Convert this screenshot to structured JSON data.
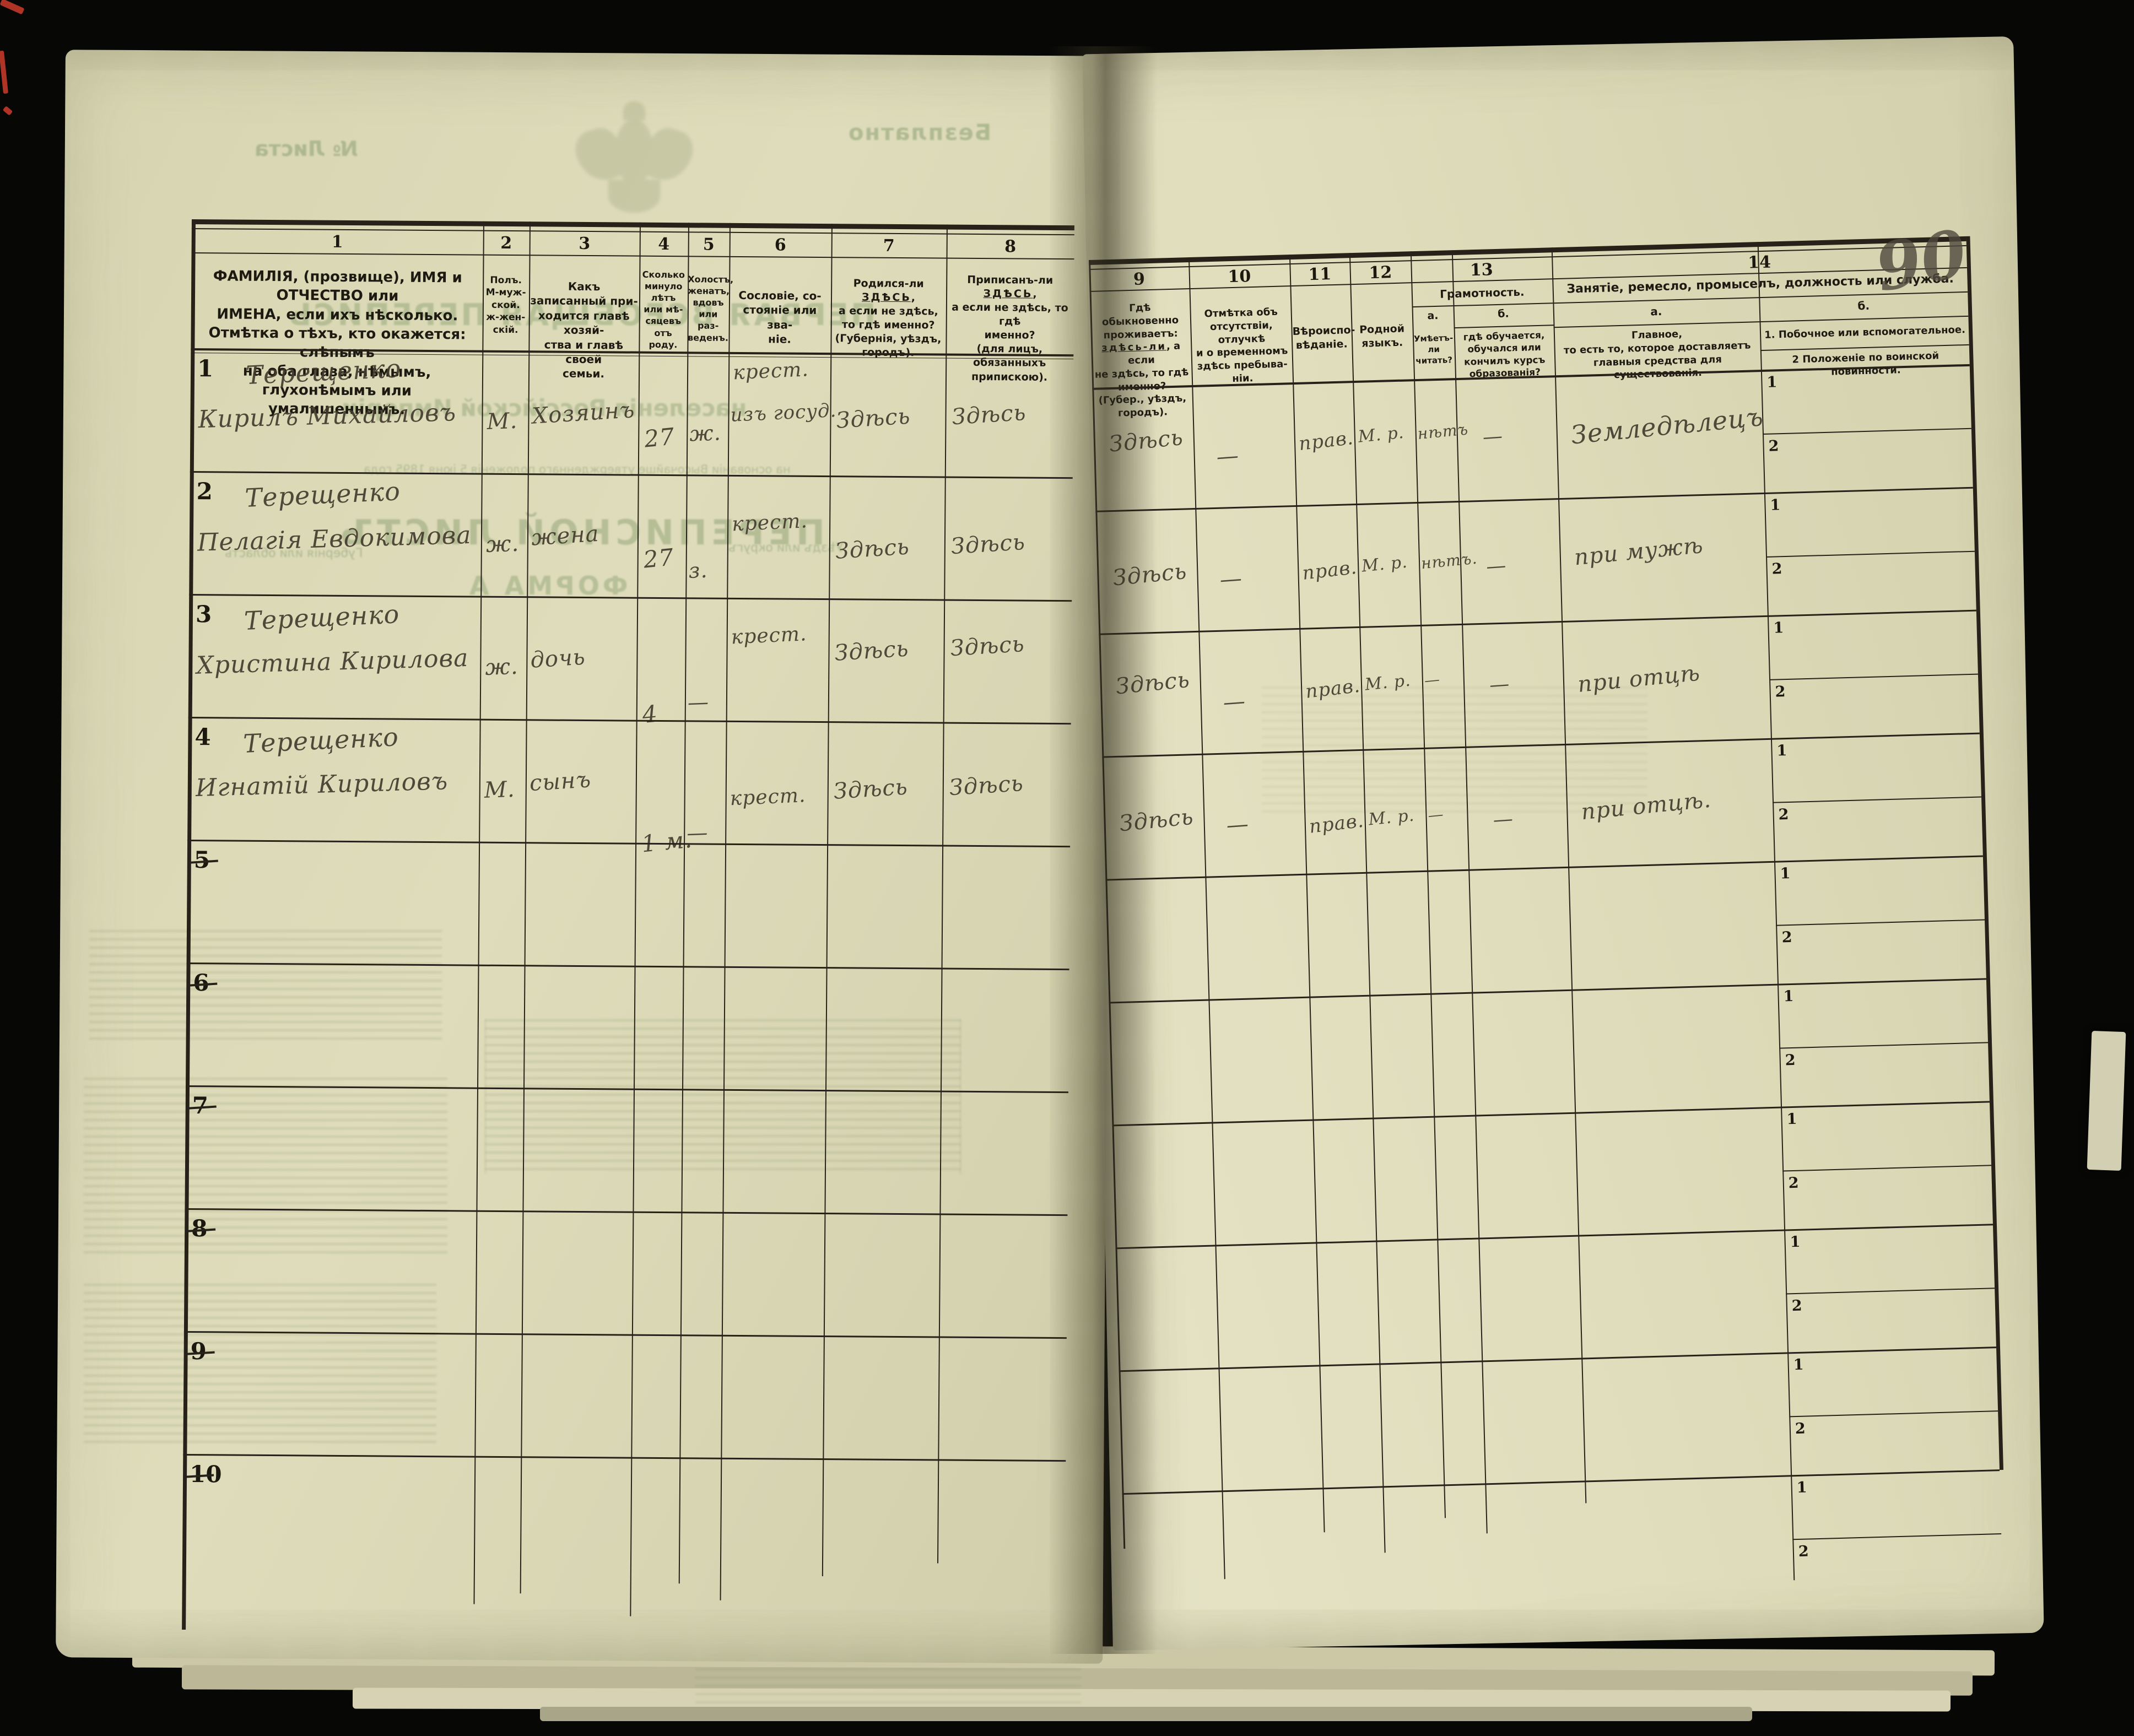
{
  "annotations": {
    "sheet_number": "90"
  },
  "bleedthrough": {
    "free": "Безплатно",
    "sheet_no": "№ Листа",
    "title1": "ПЕРВАЯ ВСЕОБЩАЯ ПЕРЕПИСЬ",
    "title2": "населенія Россійской Имперіи",
    "title3": "на основаніи Высочайше утвержденнаго положенія 5 іюня 1895 года",
    "list": "ПЕРЕПИСНОЙ ЛИСТЪ",
    "form": "ФОРМА А",
    "gub": "Губернія или область",
    "uezd": "Уѣздъ или округъ"
  },
  "table": {
    "column_numbers": [
      "1",
      "2",
      "3",
      "4",
      "5",
      "6",
      "7",
      "8",
      "9",
      "10",
      "11",
      "12",
      "13",
      "14"
    ],
    "columns": {
      "c1": "ФАМИЛІЯ, (прозвище), ИМЯ и ОТЧЕСТВО или\nИМЕНА, если ихъ нѣсколько.\nОтмѣтка о тѣхъ, кто окажется: слѣпымъ\nна оба глаза, нѣмымъ, глухонѣмымъ или\nумалишеннымъ.",
      "c2": "Полъ.\nМ-муж-\nской.\nж-жен-\nскій.",
      "c3": "Какъ записанный при-\nходится главѣ хозяй-\nства и главѣ своей\nсемьи.",
      "c4": "Сколько\nминуло\nлѣтъ\nили мѣ-\nсяцевъ\nотъ роду.",
      "c5": "Холостъ,\nженатъ,\nвдовъ\nили раз-\nведенъ.",
      "c6": "Сословіе, со-\nстояніе или зва-\nніе.",
      "c7": {
        "pre": "Родился-ли ",
        "u": "ЗДѢСЬ",
        "post": ",\nа если не здѣсь,\nто гдѣ именно?\n(Губернія, уѣздъ, городъ)."
      },
      "c8": {
        "pre": "Приписанъ-ли ",
        "u": "ЗДѢСЬ",
        "post": ",\nа если не здѣсь, то гдѣ\nименно?\n(для лицъ, обязанныхъ\nприпискою)."
      },
      "c9": {
        "pre": "Гдѣ обыкновенно\nпроживаетъ:\n",
        "u": "здѣсь-ли",
        "post": ", а если\nне здѣсь, то гдѣ\nименно?\n(Губер., уѣздъ, городъ)."
      },
      "c10": "Отмѣтка объ\nотсутствіи, отлучкѣ\nи о временномъ\nздѣсь пребыва-\nніи.",
      "c11": "Вѣроиспо-\nвѣданіе.",
      "c12": "Родной\nязыкъ.",
      "c13": {
        "title": "Грамотность.",
        "a_label": "а.",
        "b_label": "б.",
        "a": "Умѣетъ-\nли\nчитать?",
        "b": "гдѣ обучается,\nобучался или\nкончилъ курсъ\nобразованія?"
      },
      "c14": {
        "title": "Занятіе, ремесло, промыселъ, должность или служба.",
        "a_label": "а.",
        "b_label": "б.",
        "a": "Главное,\nто есть то, которое доставляетъ\nглавныя средства для существованія.",
        "b1": "1.  Побочное или вспомогательное.",
        "b2": "2  Положеніе по воинской повинности.",
        "row_sub_labels": [
          "1",
          "2"
        ]
      }
    },
    "rows": [
      {
        "num": "1",
        "surname": "Терещенко",
        "name": "Кирилъ Михайловъ",
        "sex": "М.",
        "relation": "Хозяинъ",
        "age": "27",
        "marital": "ж.",
        "estate": "крест.",
        "estate2": "изъ госуд.",
        "born": "Здѣсь",
        "ascribed": "Здѣсь",
        "resides": "Здѣсь",
        "absence": "—",
        "religion": "прав.",
        "language": "М. р.",
        "reads": "нѣтъ",
        "school": "—",
        "occupation": "Земледѣлецъ"
      },
      {
        "num": "2",
        "surname": "Терещенко",
        "name": "Пелагія Евдокимова",
        "sex": "ж.",
        "relation": "жена",
        "age": "27",
        "marital": "з.",
        "estate": "крест.",
        "estate2": "",
        "born": "Здѣсь",
        "ascribed": "Здѣсь",
        "resides": "Здѣсь",
        "absence": "—",
        "religion": "прав.",
        "language": "М. р.",
        "reads": "нѣтъ.",
        "school": "—",
        "occupation": "при мужѣ"
      },
      {
        "num": "3",
        "surname": "Терещенко",
        "name": "Христина Кирилова",
        "sex": "ж.",
        "relation": "дочь",
        "age": "4",
        "marital": "—",
        "estate": "крест.",
        "estate2": "",
        "born": "Здѣсь",
        "ascribed": "Здѣсь",
        "resides": "Здѣсь",
        "absence": "—",
        "religion": "прав.",
        "language": "М. р.",
        "reads": "—",
        "school": "—",
        "occupation": "при отцѣ"
      },
      {
        "num": "4",
        "surname": "Терещенко",
        "name": "Игнатій Кириловъ",
        "sex": "М.",
        "relation": "сынъ",
        "age": "1 м.",
        "marital": "—",
        "estate": "крест.",
        "estate2": "",
        "born": "Здѣсь",
        "ascribed": "Здѣсь",
        "resides": "Здѣсь",
        "absence": "—",
        "religion": "прав.",
        "language": "М. р.",
        "reads": "—",
        "school": "—",
        "occupation": "при отцѣ."
      },
      {
        "num": "5"
      },
      {
        "num": "6"
      },
      {
        "num": "7"
      },
      {
        "num": "8"
      },
      {
        "num": "9"
      },
      {
        "num": "10"
      }
    ]
  }
}
